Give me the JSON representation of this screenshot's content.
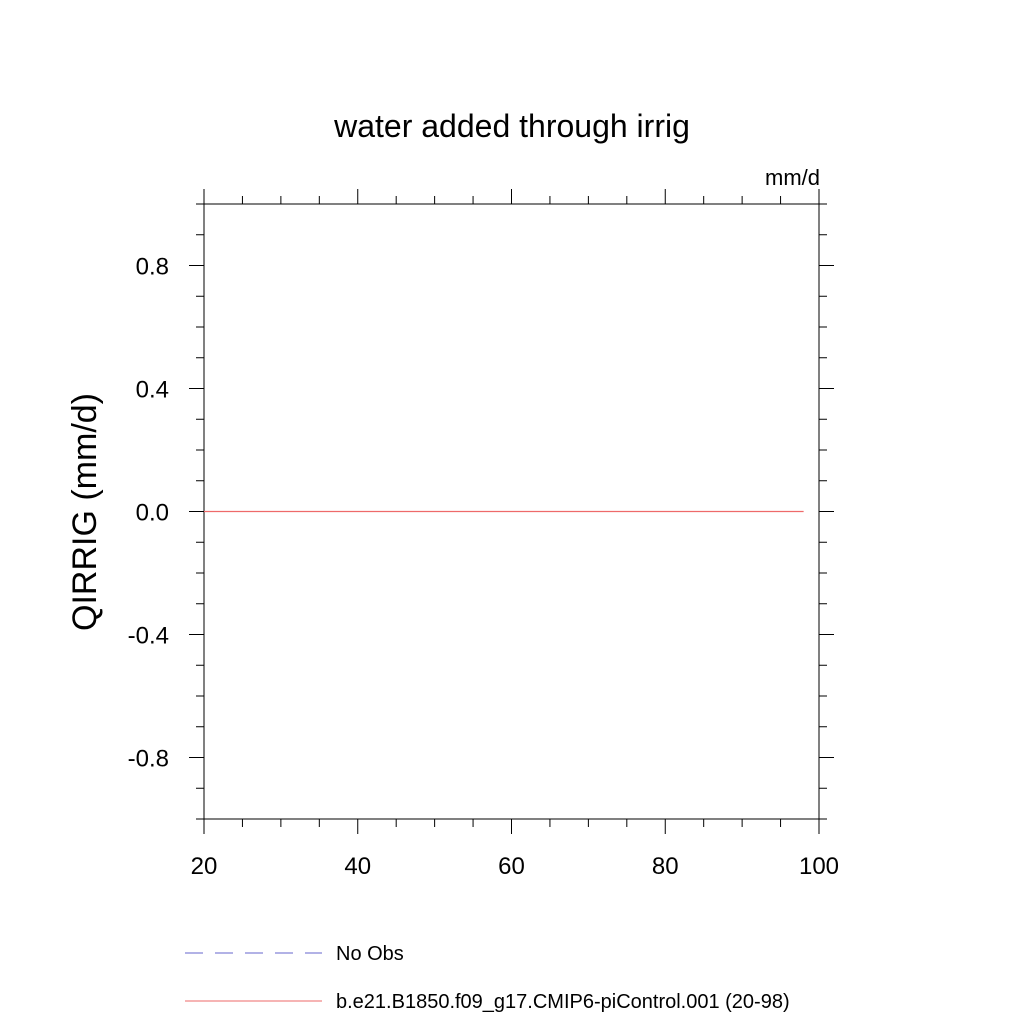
{
  "chart_data": {
    "type": "line",
    "title": "water added through irrig",
    "units_label": "mm/d",
    "xlabel": "",
    "ylabel": "QIRRIG  (mm/d)",
    "xlim": [
      20,
      100
    ],
    "ylim": [
      -1.0,
      1.0
    ],
    "x_ticks": [
      20,
      40,
      60,
      80,
      100
    ],
    "x_tick_labels": [
      "20",
      "40",
      "60",
      "80",
      "100"
    ],
    "x_minor_step": 5,
    "y_ticks": [
      -0.8,
      -0.4,
      0.0,
      0.4,
      0.8
    ],
    "y_tick_labels": [
      "-0.8",
      "-0.4",
      "0.0",
      "0.4",
      "0.8"
    ],
    "y_minor_step": 0.1,
    "grid": false,
    "legend_position": "bottom",
    "series": [
      {
        "name": "No Obs",
        "color": "#6666cc",
        "style": "dashed",
        "x": [],
        "y": []
      },
      {
        "name": "b.e21.B1850.f09_g17.CMIP6-piControl.001 (20-98)",
        "color": "#ee6a6a",
        "style": "solid",
        "x": [
          20,
          98
        ],
        "y": [
          0.0,
          0.0
        ]
      }
    ]
  }
}
